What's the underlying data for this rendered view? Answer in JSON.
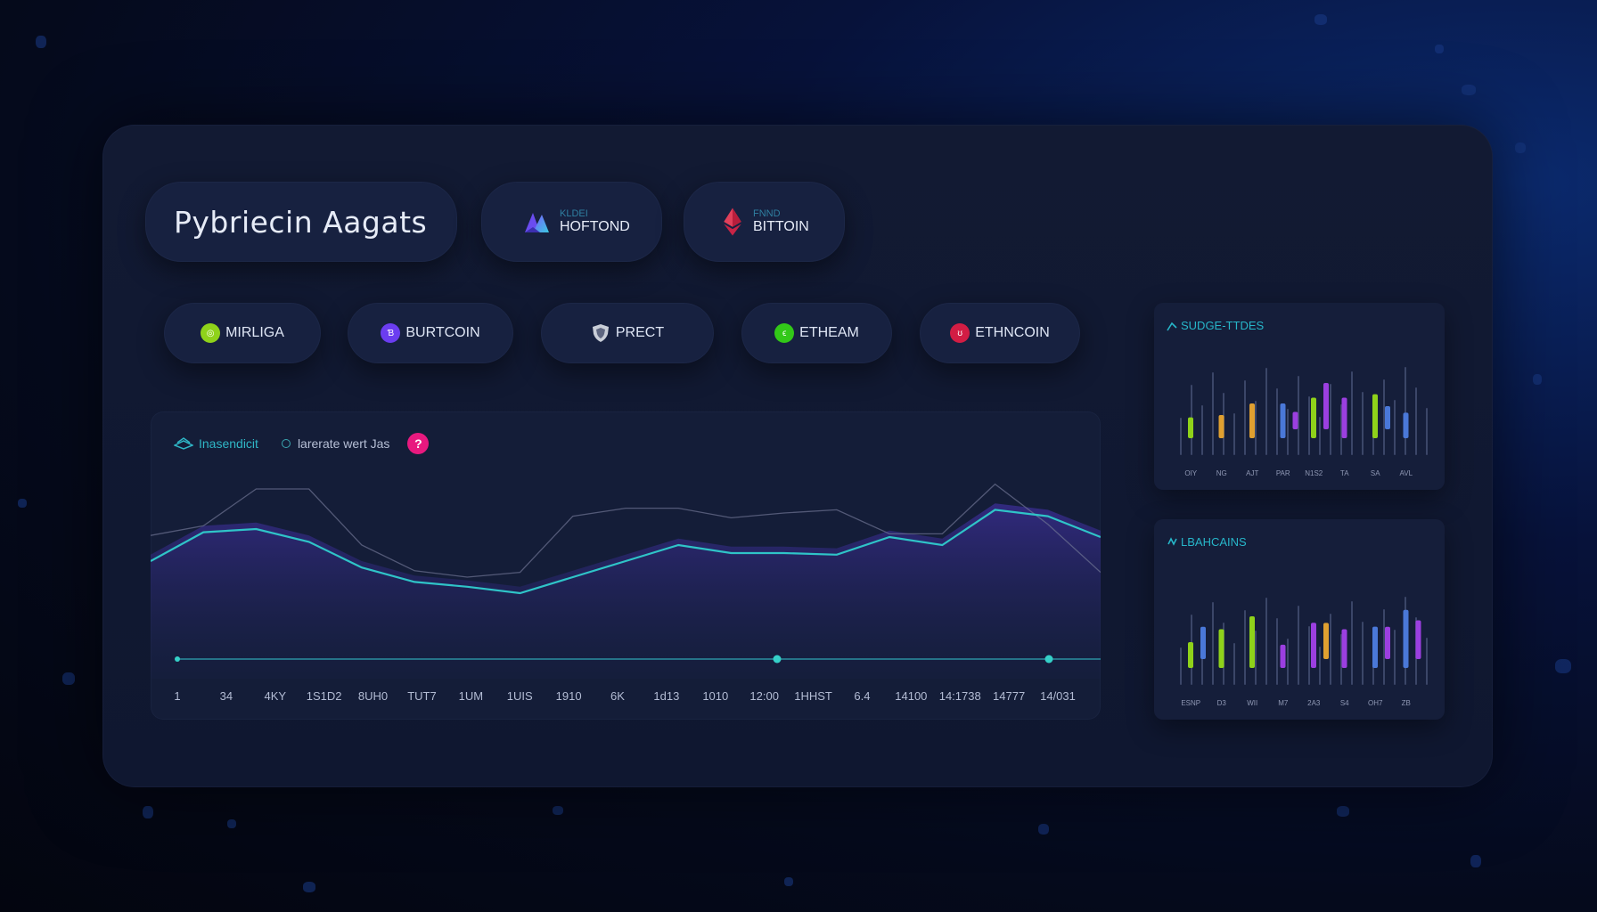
{
  "header": {
    "title": "Pybriecin Aagats"
  },
  "assets": [
    {
      "small": "KLDEI",
      "big": "HOFTOND",
      "icon": "twin-peak-logo-icon"
    },
    {
      "small": "FNND",
      "big": "BITTOIN",
      "icon": "ethereum-diamond-icon"
    }
  ],
  "chips": [
    {
      "label": "MIRLIGA",
      "icon": "lime-coin-icon",
      "color": "#8fd21a",
      "glyph": "◎"
    },
    {
      "label": "BURTCOIN",
      "icon": "purple-coin-icon",
      "color": "#6b3df0",
      "glyph": "Ɓ"
    },
    {
      "label": "PRECT",
      "icon": "shield-icon",
      "color": "#c9ced8",
      "glyph": "⛉"
    },
    {
      "label": "ETHEAM",
      "icon": "green-coin-icon",
      "color": "#32c818",
      "glyph": "ϵ"
    },
    {
      "label": "ETHNCOIN",
      "icon": "red-coin-icon",
      "color": "#d21d44",
      "glyph": "ʊ"
    }
  ],
  "main_chart": {
    "legend": [
      "Inasendicit",
      "larerate wert Jas"
    ],
    "badge": "?",
    "colors": {
      "line": "#2fc4c8",
      "area": "#5a36c8",
      "ghost": "#6d7393"
    }
  },
  "side_cards": [
    {
      "title": "SUDGE-TTDES"
    },
    {
      "title": "LBAHCAINS"
    }
  ],
  "chart_data": [
    {
      "type": "line",
      "title": "",
      "x": [
        "1",
        "34",
        "4KY",
        "1S1D2",
        "8UH0",
        "TUT7",
        "1UM",
        "1UIS",
        "1910",
        "6K",
        "1d13",
        "1010",
        "12:00",
        "1HHST",
        "6.4",
        "14100",
        "14:1738",
        "14777",
        "14/031"
      ],
      "series": [
        {
          "name": "Inasendicit",
          "values": [
            40,
            58,
            60,
            52,
            36,
            27,
            24,
            20,
            30,
            40,
            50,
            45,
            45,
            44,
            55,
            50,
            72,
            68,
            55
          ]
        },
        {
          "name": "larerate wert Jas",
          "values": [
            56,
            62,
            85,
            85,
            50,
            34,
            30,
            33,
            68,
            73,
            73,
            67,
            70,
            72,
            57,
            57,
            88,
            63,
            33
          ]
        }
      ],
      "ylim": [
        0,
        100
      ],
      "grid": false,
      "legend_position": "top-left"
    },
    {
      "type": "bar",
      "title": "SUDGE-TTDES",
      "categories": [
        "OIY",
        "NG",
        "AJT",
        "PAR",
        "N1S2",
        "TA",
        "SA",
        "AVL"
      ],
      "series": [
        {
          "name": "lime",
          "values": [
            18,
            0,
            0,
            0,
            35,
            0,
            38,
            0
          ]
        },
        {
          "name": "orange",
          "values": [
            0,
            20,
            30,
            0,
            0,
            0,
            0,
            0
          ]
        },
        {
          "name": "blue",
          "values": [
            0,
            0,
            0,
            30,
            0,
            0,
            20,
            22
          ]
        },
        {
          "name": "purple",
          "values": [
            0,
            0,
            0,
            15,
            40,
            35,
            0,
            0
          ]
        }
      ],
      "ylim": [
        0,
        100
      ]
    },
    {
      "type": "bar",
      "title": "LBAHCAINS",
      "categories": [
        "ESNP",
        "D3",
        "WII",
        "M7",
        "2A3",
        "S4",
        "OH7",
        "ZB"
      ],
      "series": [
        {
          "name": "lime",
          "values": [
            20,
            30,
            40,
            0,
            0,
            0,
            0,
            0
          ]
        },
        {
          "name": "blue",
          "values": [
            25,
            0,
            0,
            0,
            0,
            0,
            32,
            45
          ]
        },
        {
          "name": "purple",
          "values": [
            0,
            0,
            0,
            18,
            35,
            30,
            25,
            30
          ]
        },
        {
          "name": "orange",
          "values": [
            0,
            0,
            0,
            0,
            28,
            0,
            0,
            0
          ]
        }
      ],
      "ylim": [
        0,
        100
      ]
    }
  ]
}
